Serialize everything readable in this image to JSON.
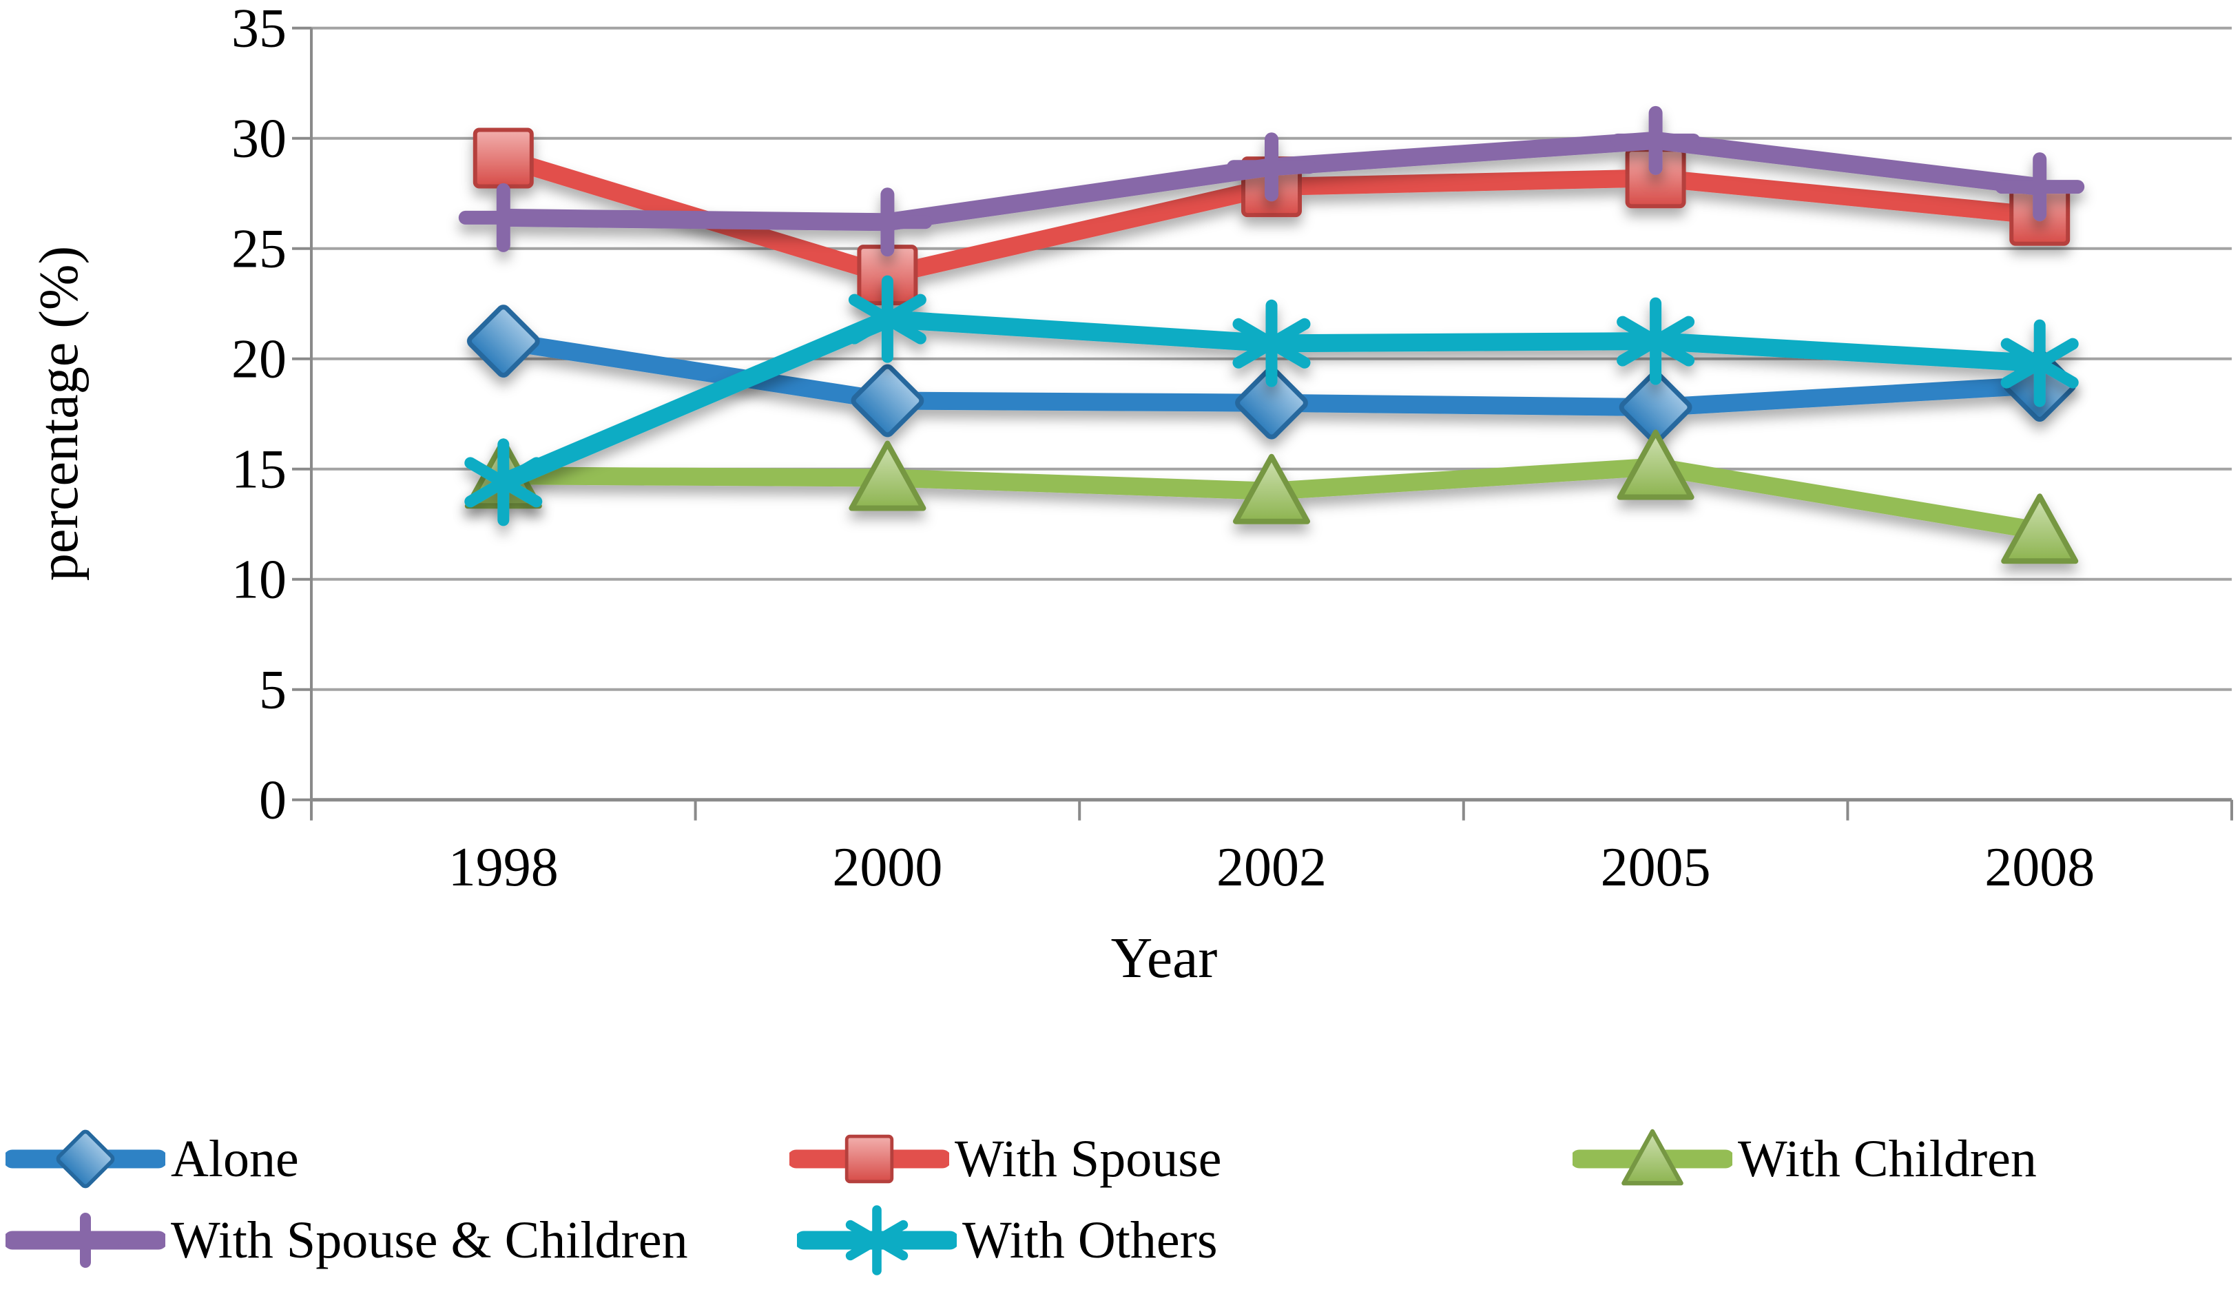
{
  "chart_data": {
    "type": "line",
    "title": "",
    "xlabel": "Year",
    "ylabel": "percentage (%)",
    "categories": [
      "1998",
      "2000",
      "2002",
      "2005",
      "2008"
    ],
    "y_ticks": [
      0,
      5,
      10,
      15,
      20,
      25,
      30,
      35
    ],
    "ylim": [
      0,
      35
    ],
    "grid": "horizontal",
    "legend_position": "bottom",
    "series": [
      {
        "name": "Alone",
        "marker": "diamond",
        "color": "#2E82C5",
        "values": [
          20.8,
          18.1,
          18.0,
          17.8,
          18.8
        ]
      },
      {
        "name": "With Spouse",
        "marker": "square",
        "color": "#E2504C",
        "values": [
          29.1,
          23.8,
          27.8,
          28.2,
          26.5
        ]
      },
      {
        "name": "With Children",
        "marker": "triangle",
        "color": "#94BD54",
        "values": [
          14.7,
          14.6,
          14.0,
          15.1,
          12.2
        ]
      },
      {
        "name": "With Spouse & Children",
        "marker": "plus",
        "color": "#8767A8",
        "values": [
          26.4,
          26.2,
          28.7,
          29.9,
          27.8
        ],
        "error": [
          1.1,
          1.1,
          1.1,
          1.1,
          1.1
        ]
      },
      {
        "name": "With Others",
        "marker": "asterisk",
        "color": "#0CACC4",
        "values": [
          14.4,
          21.8,
          20.7,
          20.8,
          19.8
        ]
      }
    ],
    "colors": {
      "gridline": "#A3A3A3",
      "axis": "#8A8A8A",
      "text": "#000000"
    }
  }
}
